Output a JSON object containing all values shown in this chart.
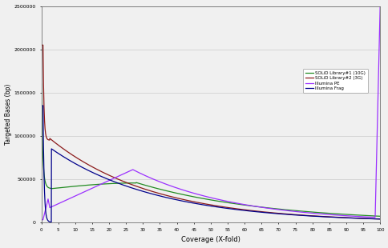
{
  "title": "",
  "xlabel": "Coverage (X-fold)",
  "ylabel": "Targeted Bases (bp)",
  "xlim": [
    0,
    100
  ],
  "ylim": [
    0,
    2500000
  ],
  "yticks": [
    0,
    500000,
    1000000,
    1500000,
    2000000,
    2500000
  ],
  "legend_labels": [
    "SOLiD Library#1 (10G)",
    "SOLiD Library#2 (3G)",
    "Illumina PE",
    "Illumina Frag"
  ],
  "legend_colors": [
    "#228B22",
    "#8B1A1A",
    "#9B30FF",
    "#00008B"
  ],
  "background_color": "#f0f0f0",
  "grid_color": "#cccccc",
  "figsize": [
    4.85,
    3.1
  ],
  "dpi": 100
}
